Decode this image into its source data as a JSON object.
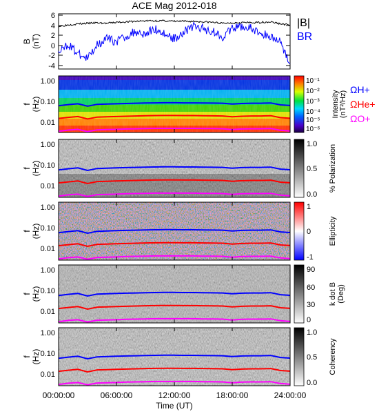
{
  "title": "ACE Mag 2012-018",
  "x_axis": {
    "label": "Time (UT)",
    "tick_labels": [
      "00:00:00",
      "06:00:00",
      "12:00:00",
      "18:00:00",
      "24:00:00"
    ],
    "range_hours": [
      0,
      24
    ]
  },
  "colors": {
    "B_total": "#000000",
    "B_R": "#0000ff",
    "Omega_H": "#0000ff",
    "Omega_He": "#ff0000",
    "Omega_O": "#ff00ff"
  },
  "legend": {
    "panel1": [
      "|B|",
      "BR"
    ],
    "panel2": [
      "ΩH+",
      "ΩHe+",
      "ΩO+"
    ]
  },
  "panels": [
    {
      "key": "bfield",
      "ylabel": "B",
      "yunit": "(nT)",
      "tick_labels": [
        "6",
        "4",
        "2",
        "0",
        "-2",
        "-4"
      ]
    },
    {
      "key": "intensity",
      "ylabel": "f",
      "yunit": "(Hz)",
      "tick_labels": [
        "1.00",
        "0.10",
        "0.01"
      ],
      "colorbar_label": "Intensity",
      "colorbar_unit": "(nT²/Hz)",
      "colorbar_ticks": [
        "10⁻¹",
        "10⁻²",
        "10⁻³",
        "10⁻⁴",
        "10⁻⁵",
        "10⁻⁶"
      ]
    },
    {
      "key": "polarization",
      "ylabel": "f",
      "yunit": "(Hz)",
      "tick_labels": [
        "1.00",
        "0.10",
        "0.01"
      ],
      "colorbar_label": "% Polarization",
      "colorbar_ticks": [
        "1.0",
        "0.5",
        "0.0"
      ]
    },
    {
      "key": "ellipticity",
      "ylabel": "f",
      "yunit": "(Hz)",
      "tick_labels": [
        "1.00",
        "0.10",
        "0.01"
      ],
      "colorbar_label": "Ellipticity",
      "colorbar_ticks": [
        "1",
        "0",
        "-1"
      ]
    },
    {
      "key": "kdotb",
      "ylabel": "f",
      "yunit": "(Hz)",
      "tick_labels": [
        "1.00",
        "0.10",
        "0.01"
      ],
      "colorbar_label": "k dot B",
      "colorbar_unit": "(Deg)",
      "colorbar_ticks": [
        "90",
        "60",
        "30",
        "0"
      ]
    },
    {
      "key": "coherency",
      "ylabel": "f",
      "yunit": "(Hz)",
      "tick_labels": [
        "1.00",
        "0.10",
        "0.01"
      ],
      "colorbar_label": "Coherency",
      "colorbar_ticks": [
        "1.0",
        "0.5",
        "0.0"
      ]
    }
  ],
  "chart_data": [
    {
      "type": "line",
      "panel": "B field",
      "x": [
        0,
        1,
        2,
        3,
        4,
        5,
        6,
        7,
        8,
        9,
        10,
        11,
        12,
        13,
        14,
        15,
        16,
        17,
        18,
        19,
        20,
        21,
        22,
        23,
        24
      ],
      "ylim": [
        -4.5,
        6.5
      ],
      "series": [
        {
          "name": "|B|",
          "values": [
            4.0,
            4.3,
            4.5,
            4.6,
            4.7,
            4.6,
            4.8,
            4.9,
            5.0,
            5.1,
            5.1,
            5.1,
            5.0,
            5.0,
            5.0,
            4.9,
            4.8,
            4.6,
            4.7,
            4.8,
            4.7,
            4.8,
            4.9,
            4.5,
            4.3
          ]
        },
        {
          "name": "BR",
          "values": [
            -1.5,
            0.5,
            -1.5,
            -2.5,
            0.5,
            1.5,
            1.0,
            2.0,
            3.0,
            2.5,
            3.5,
            2.5,
            1.5,
            3.0,
            4.0,
            3.5,
            3.0,
            2.0,
            3.5,
            4.0,
            3.5,
            2.5,
            2.0,
            1.0,
            -3.5
          ]
        }
      ]
    },
    {
      "type": "line",
      "panel": "gyrofrequencies",
      "x": [
        0,
        1,
        2,
        3,
        4,
        5,
        6,
        7,
        8,
        9,
        10,
        11,
        12,
        13,
        14,
        15,
        16,
        17,
        18,
        19,
        20,
        21,
        22,
        23,
        24
      ],
      "yscale": "log",
      "ylim": [
        0.003,
        1.4
      ],
      "series": [
        {
          "name": "ΩH+",
          "values": [
            0.055,
            0.062,
            0.068,
            0.052,
            0.064,
            0.066,
            0.068,
            0.07,
            0.072,
            0.074,
            0.075,
            0.076,
            0.076,
            0.075,
            0.075,
            0.074,
            0.073,
            0.072,
            0.066,
            0.07,
            0.072,
            0.072,
            0.074,
            0.06,
            0.056
          ]
        },
        {
          "name": "ΩHe+",
          "values": [
            0.0138,
            0.0155,
            0.017,
            0.013,
            0.016,
            0.0165,
            0.017,
            0.0175,
            0.018,
            0.0185,
            0.0188,
            0.019,
            0.019,
            0.0188,
            0.0188,
            0.0185,
            0.0183,
            0.018,
            0.0165,
            0.0175,
            0.018,
            0.018,
            0.0185,
            0.015,
            0.014
          ]
        },
        {
          "name": "ΩO+",
          "values": [
            0.0034,
            0.0039,
            0.0042,
            0.0033,
            0.004,
            0.0041,
            0.0042,
            0.0044,
            0.0045,
            0.0046,
            0.0047,
            0.0047,
            0.0047,
            0.0047,
            0.0047,
            0.0046,
            0.0046,
            0.0045,
            0.0041,
            0.0044,
            0.0045,
            0.0045,
            0.0046,
            0.0038,
            0.0035
          ]
        }
      ]
    }
  ]
}
